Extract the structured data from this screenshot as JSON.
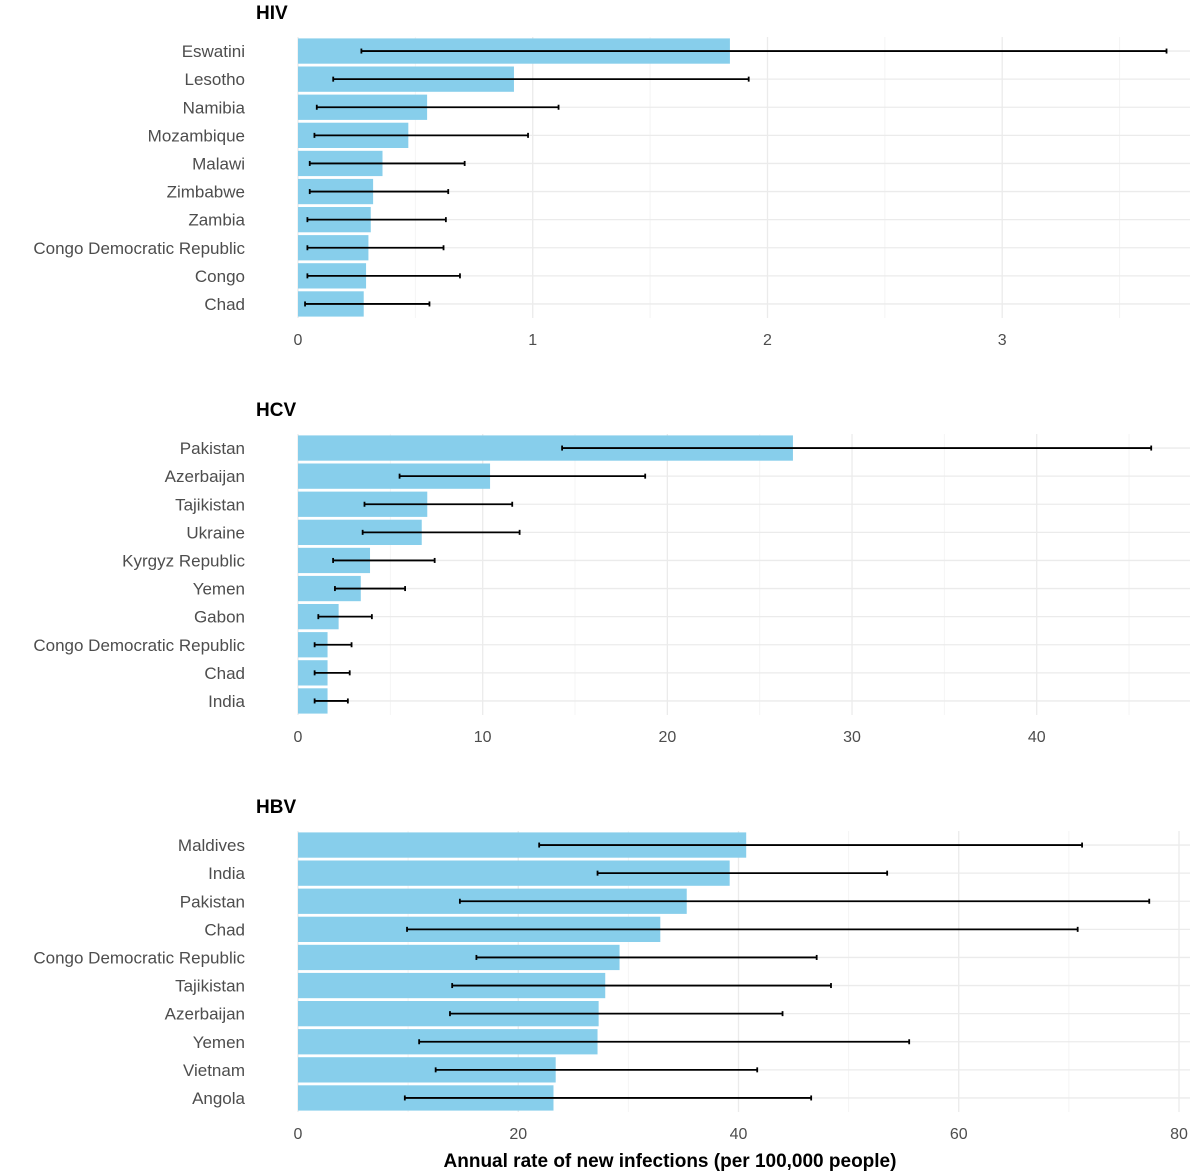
{
  "chart_data": [
    {
      "type": "bar",
      "orientation": "horizontal",
      "title": "HIV",
      "categories": [
        "Eswatini",
        "Lesotho",
        "Namibia",
        "Mozambique",
        "Malawi",
        "Zimbabwe",
        "Zambia",
        "Congo Democratic Republic",
        "Congo",
        "Chad"
      ],
      "values": [
        1.84,
        0.92,
        0.55,
        0.47,
        0.36,
        0.32,
        0.31,
        0.3,
        0.29,
        0.28
      ],
      "lower": [
        0.27,
        0.15,
        0.08,
        0.07,
        0.05,
        0.05,
        0.04,
        0.04,
        0.04,
        0.03
      ],
      "upper": [
        3.7,
        1.92,
        1.11,
        0.98,
        0.71,
        0.64,
        0.63,
        0.62,
        0.69,
        0.56
      ],
      "xlim": [
        0,
        3.8
      ],
      "xticks": [
        0,
        1,
        2,
        3
      ],
      "xtick_labels": [
        "0",
        "1",
        "2",
        "3"
      ],
      "bar_color": "#87ceeb",
      "error_color": "#000000"
    },
    {
      "type": "bar",
      "orientation": "horizontal",
      "title": "HCV",
      "categories": [
        "Pakistan",
        "Azerbaijan",
        "Tajikistan",
        "Ukraine",
        "Kyrgyz Republic",
        "Yemen",
        "Gabon",
        "Congo Democratic Republic",
        "Chad",
        "India"
      ],
      "values": [
        26.8,
        10.4,
        7.0,
        6.7,
        3.9,
        3.4,
        2.2,
        1.6,
        1.6,
        1.6
      ],
      "lower": [
        14.3,
        5.5,
        3.6,
        3.5,
        1.9,
        2.0,
        1.1,
        0.9,
        0.9,
        0.9
      ],
      "upper": [
        46.2,
        18.8,
        11.6,
        12.0,
        7.4,
        5.8,
        4.0,
        2.9,
        2.8,
        2.7
      ],
      "xlim": [
        0,
        48.3
      ],
      "xticks": [
        0,
        10,
        20,
        30,
        40
      ],
      "xtick_labels": [
        "0",
        "10",
        "20",
        "30",
        "40"
      ],
      "bar_color": "#87ceeb",
      "error_color": "#000000"
    },
    {
      "type": "bar",
      "orientation": "horizontal",
      "title": "HBV",
      "categories": [
        "Maldives",
        "India",
        "Pakistan",
        "Chad",
        "Congo Democratic Republic",
        "Tajikistan",
        "Azerbaijan",
        "Yemen",
        "Vietnam",
        "Angola"
      ],
      "values": [
        40.7,
        39.2,
        35.3,
        32.9,
        29.2,
        27.9,
        27.3,
        27.2,
        23.4,
        23.2
      ],
      "lower": [
        21.9,
        27.2,
        14.7,
        9.9,
        16.2,
        14.0,
        13.8,
        11.0,
        12.5,
        9.7
      ],
      "upper": [
        71.2,
        53.5,
        77.3,
        70.8,
        47.1,
        48.4,
        44.0,
        55.5,
        41.7,
        46.6
      ],
      "xlim": [
        0,
        81
      ],
      "xticks": [
        0,
        20,
        40,
        60,
        80
      ],
      "xtick_labels": [
        "0",
        "20",
        "40",
        "60",
        "80"
      ],
      "bar_color": "#87ceeb",
      "error_color": "#000000"
    }
  ],
  "xlabel": "Annual rate of new infections (per 100,000 people)",
  "colors": {
    "bar": "#87ceeb",
    "error_bar": "#000000",
    "grid_major": "#ebebeb",
    "grid_minor": "#f4f4f4",
    "text": "#4d4d4d",
    "title": "#000000"
  }
}
